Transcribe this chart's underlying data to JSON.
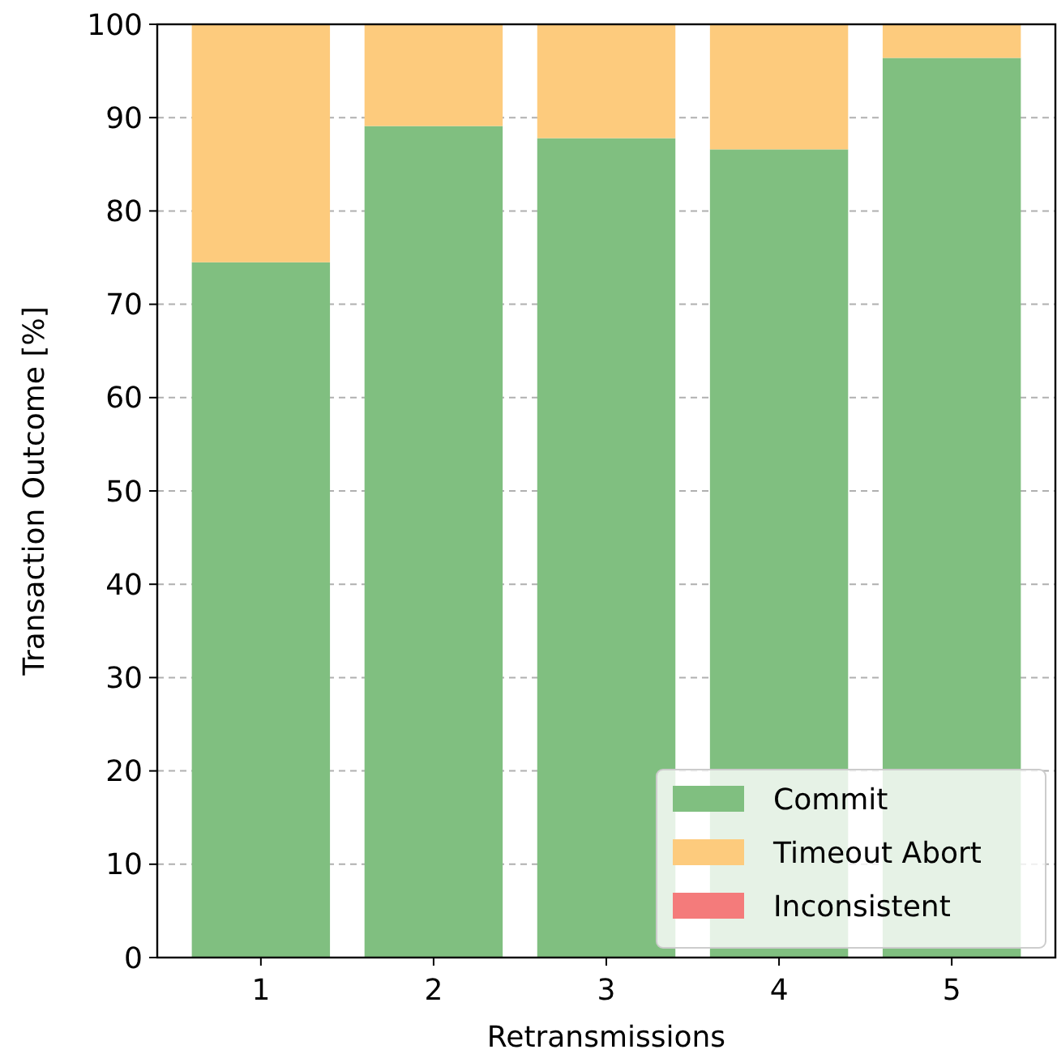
{
  "chart_data": {
    "type": "bar",
    "xlabel": "Retransmissions",
    "ylabel": "Transaction Outcome [%]",
    "categories": [
      "1",
      "2",
      "3",
      "4",
      "5"
    ],
    "stacked": true,
    "series": [
      {
        "name": "Commit",
        "color": "#80bf80",
        "values": [
          74.5,
          89.1,
          87.8,
          86.6,
          96.4
        ]
      },
      {
        "name": "Timeout Abort",
        "color": "#fdcb7d",
        "values": [
          25.5,
          10.9,
          12.2,
          13.4,
          3.6
        ]
      },
      {
        "name": "Inconsistent",
        "color": "#f47b7b",
        "values": [
          0,
          0,
          0,
          0,
          0
        ]
      }
    ],
    "ylim": [
      0,
      100
    ],
    "yticks": [
      0,
      10,
      20,
      30,
      40,
      50,
      60,
      70,
      80,
      90,
      100
    ],
    "grid": "y",
    "legend": "bottom right"
  }
}
